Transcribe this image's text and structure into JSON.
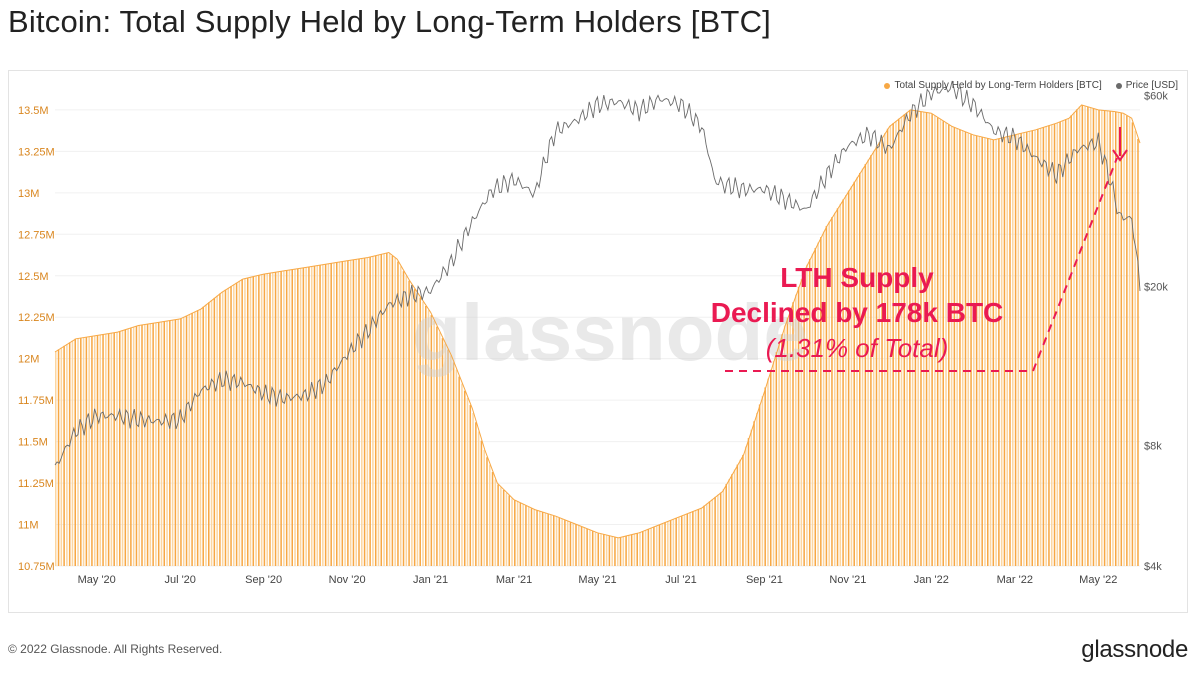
{
  "title": "Bitcoin: Total Supply Held by Long-Term Holders [BTC]",
  "footer": {
    "copyright": "© 2022 Glassnode. All Rights Reserved.",
    "brand": "glassnode"
  },
  "watermark": "glassnode",
  "legend": {
    "supply_label": "Total Supply Held by Long-Term Holders [BTC]",
    "price_label": "Price [USD]"
  },
  "annotation": {
    "line1": "LTH Supply",
    "line2": "Declined by 178k BTC",
    "line3": "(1.31% of Total)"
  },
  "colors": {
    "supply": "#f7a845",
    "supply_fill": "#fcd6a1",
    "price": "#6b6b6b",
    "left_axis_text": "#d9861f",
    "annotation": "#ea1a52"
  },
  "chart_data": {
    "type": "bar",
    "x_tick_labels": [
      "May '20",
      "Jul '20",
      "Sep '20",
      "Nov '20",
      "Jan '21",
      "Mar '21",
      "May '21",
      "Jul '21",
      "Sep '21",
      "Nov '21",
      "Jan '22",
      "Mar '22",
      "May '22"
    ],
    "y_left_labels": [
      "10.75M",
      "11M",
      "11.25M",
      "11.5M",
      "11.75M",
      "12M",
      "12.25M",
      "12.5M",
      "12.75M",
      "13M",
      "13.25M",
      "13.5M"
    ],
    "y_left_values": [
      10.75,
      11.0,
      11.25,
      11.5,
      11.75,
      12.0,
      12.25,
      12.5,
      12.75,
      13.0,
      13.25,
      13.5
    ],
    "y_left_unit": "M BTC",
    "y_left_range": [
      10.75,
      13.62
    ],
    "y_right_labels": [
      "$4k",
      "$8k",
      "$20k",
      "$60k"
    ],
    "y_right_values": [
      4000,
      8000,
      20000,
      60000
    ],
    "y_right_scale": "log",
    "y_right_range": [
      4000,
      62000
    ],
    "x_range_months": [
      0,
      26.0
    ],
    "x_unit": "months since 2020-04-01",
    "series": [
      {
        "name": "Total Supply Held by Long-Term Holders [BTC]",
        "axis": "left",
        "points": [
          [
            0.0,
            12.04
          ],
          [
            0.5,
            12.12
          ],
          [
            1.0,
            12.14
          ],
          [
            1.5,
            12.16
          ],
          [
            2.0,
            12.2
          ],
          [
            2.5,
            12.22
          ],
          [
            3.0,
            12.24
          ],
          [
            3.5,
            12.3
          ],
          [
            4.0,
            12.4
          ],
          [
            4.5,
            12.48
          ],
          [
            5.0,
            12.51
          ],
          [
            5.5,
            12.53
          ],
          [
            6.0,
            12.55
          ],
          [
            6.5,
            12.57
          ],
          [
            7.0,
            12.59
          ],
          [
            7.5,
            12.61
          ],
          [
            8.0,
            12.64
          ],
          [
            8.2,
            12.6
          ],
          [
            8.5,
            12.47
          ],
          [
            9.0,
            12.28
          ],
          [
            9.5,
            12.02
          ],
          [
            10.0,
            11.7
          ],
          [
            10.3,
            11.45
          ],
          [
            10.6,
            11.25
          ],
          [
            11.0,
            11.15
          ],
          [
            11.5,
            11.09
          ],
          [
            12.0,
            11.05
          ],
          [
            12.5,
            11.0
          ],
          [
            13.0,
            10.95
          ],
          [
            13.5,
            10.92
          ],
          [
            14.0,
            10.95
          ],
          [
            14.5,
            11.0
          ],
          [
            15.0,
            11.05
          ],
          [
            15.5,
            11.1
          ],
          [
            16.0,
            11.2
          ],
          [
            16.5,
            11.42
          ],
          [
            17.0,
            11.8
          ],
          [
            17.5,
            12.2
          ],
          [
            18.0,
            12.55
          ],
          [
            18.5,
            12.8
          ],
          [
            19.0,
            13.0
          ],
          [
            19.5,
            13.2
          ],
          [
            20.0,
            13.4
          ],
          [
            20.5,
            13.5
          ],
          [
            21.0,
            13.48
          ],
          [
            21.5,
            13.4
          ],
          [
            22.0,
            13.35
          ],
          [
            22.5,
            13.32
          ],
          [
            23.0,
            13.35
          ],
          [
            23.5,
            13.38
          ],
          [
            24.0,
            13.42
          ],
          [
            24.3,
            13.45
          ],
          [
            24.6,
            13.53
          ],
          [
            25.0,
            13.5
          ],
          [
            25.4,
            13.49
          ],
          [
            25.6,
            13.48
          ],
          [
            25.8,
            13.45
          ],
          [
            26.0,
            13.3
          ]
        ]
      },
      {
        "name": "Price [USD]",
        "axis": "right",
        "points": [
          [
            0.0,
            7000
          ],
          [
            0.5,
            8700
          ],
          [
            1.0,
            9500
          ],
          [
            1.5,
            9500
          ],
          [
            2.0,
            9300
          ],
          [
            2.5,
            9200
          ],
          [
            3.0,
            9300
          ],
          [
            3.5,
            11000
          ],
          [
            4.0,
            11700
          ],
          [
            4.5,
            11500
          ],
          [
            5.0,
            10800
          ],
          [
            5.5,
            10500
          ],
          [
            6.0,
            10700
          ],
          [
            6.5,
            11500
          ],
          [
            7.0,
            13500
          ],
          [
            7.5,
            15500
          ],
          [
            8.0,
            18000
          ],
          [
            8.5,
            19000
          ],
          [
            9.0,
            19500
          ],
          [
            9.5,
            23000
          ],
          [
            10.0,
            29000
          ],
          [
            10.5,
            35000
          ],
          [
            11.0,
            37000
          ],
          [
            11.5,
            34000
          ],
          [
            12.0,
            49000
          ],
          [
            12.5,
            52000
          ],
          [
            13.0,
            57000
          ],
          [
            13.5,
            58000
          ],
          [
            14.0,
            55000
          ],
          [
            14.5,
            59000
          ],
          [
            15.0,
            57000
          ],
          [
            15.5,
            50000
          ],
          [
            15.8,
            37000
          ],
          [
            16.0,
            36000
          ],
          [
            16.5,
            35000
          ],
          [
            17.0,
            35000
          ],
          [
            17.5,
            33000
          ],
          [
            18.0,
            31000
          ],
          [
            18.5,
            38000
          ],
          [
            19.0,
            45000
          ],
          [
            19.5,
            48000
          ],
          [
            20.0,
            44000
          ],
          [
            20.5,
            54000
          ],
          [
            21.0,
            61000
          ],
          [
            21.5,
            63000
          ],
          [
            21.8,
            59000
          ],
          [
            22.0,
            57000
          ],
          [
            22.5,
            49000
          ],
          [
            23.0,
            47000
          ],
          [
            23.5,
            42000
          ],
          [
            24.0,
            38000
          ],
          [
            24.5,
            44000
          ],
          [
            25.0,
            46000
          ],
          [
            25.5,
            30000
          ],
          [
            25.8,
            29500
          ],
          [
            26.0,
            20000
          ]
        ]
      }
    ]
  }
}
